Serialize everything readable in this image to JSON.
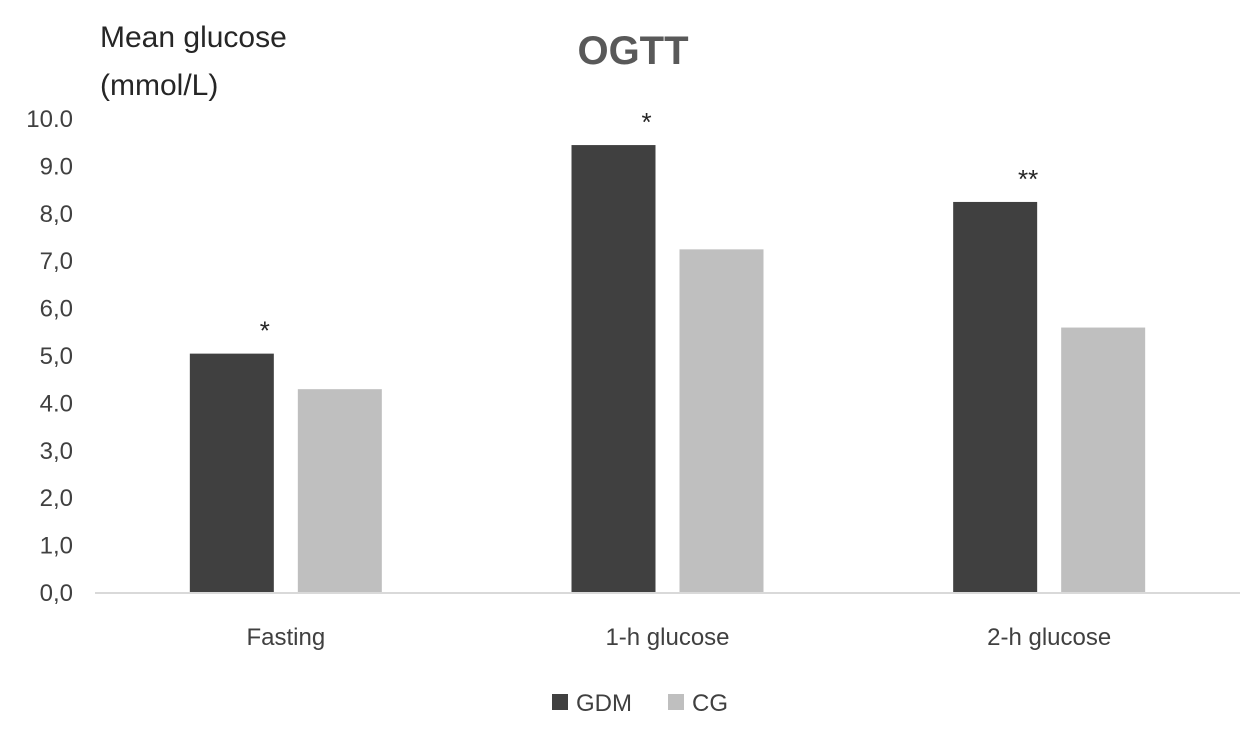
{
  "chart_data": {
    "type": "bar",
    "title": "OGTT",
    "ylabel_lines": [
      "Mean glucose",
      "(mmol/L)"
    ],
    "xlabel": "",
    "categories": [
      "Fasting",
      "1-h glucose",
      "2-h glucose"
    ],
    "series": [
      {
        "name": "GDM",
        "color": "#404040",
        "values": [
          5.05,
          9.45,
          8.25
        ]
      },
      {
        "name": "CG",
        "color": "#bfbfbf",
        "values": [
          4.3,
          7.25,
          5.6
        ]
      }
    ],
    "significance": [
      "*",
      "*",
      "**"
    ],
    "ylim": [
      0,
      10
    ],
    "yticks": [
      0,
      1,
      2,
      3,
      4,
      5,
      6,
      7,
      8,
      9,
      10
    ],
    "ytick_labels": [
      "0,0",
      "1,0",
      "2,0",
      "3,0",
      "4.0",
      "5,0",
      "6,0",
      "7,0",
      "8,0",
      "9.0",
      "10.0"
    ],
    "grid": false,
    "legend_position": "bottom-center"
  }
}
